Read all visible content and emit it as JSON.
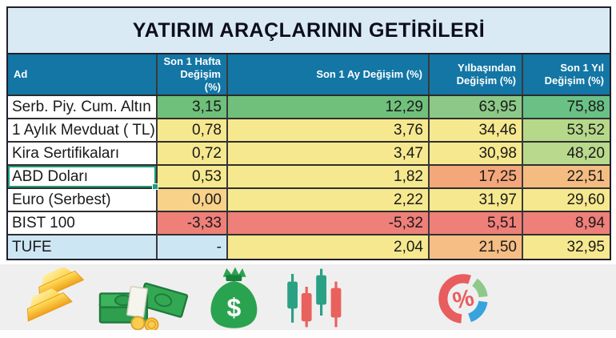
{
  "title": "YATIRIM ARAÇLARININ GETİRİLERİ",
  "chart_data": {
    "type": "table",
    "title": "YATIRIM ARAÇLARININ GETİRİLERİ",
    "columns": [
      "Ad",
      "Son 1 Hafta Değişim (%)",
      "Son 1 Ay Değişim (%)",
      "Yılbaşından Değişim (%)",
      "Son 1 Yıl Değişim (%)"
    ],
    "rows": [
      {
        "cells": [
          "Serb. Piy. Cum. Altın",
          "3,15",
          "12,29",
          "63,95",
          "75,88"
        ],
        "colors": [
          "#ffffff",
          "#6fc07a",
          "#70c07b",
          "#8cc988",
          "#6ac186"
        ]
      },
      {
        "cells": [
          "1 Aylık Mevduat ( TL)",
          "0,78",
          "3,76",
          "34,46",
          "53,52"
        ],
        "colors": [
          "#ffffff",
          "#f6e88e",
          "#f6e88e",
          "#f6e88e",
          "#b6d88b"
        ]
      },
      {
        "cells": [
          "Kira Sertifikaları",
          "0,72",
          "3,47",
          "30,98",
          "48,20"
        ],
        "colors": [
          "#ffffff",
          "#f6e88e",
          "#f6e88e",
          "#f6e88e",
          "#b9d98c"
        ]
      },
      {
        "cells": [
          "ABD Doları",
          "0,53",
          "1,82",
          "17,25",
          "22,51"
        ],
        "colors": [
          "#ffffff",
          "#f6e88e",
          "#f6e88e",
          "#f3a77b",
          "#f5bc82"
        ]
      },
      {
        "cells": [
          "Euro (Serbest)",
          "0,00",
          "2,22",
          "31,97",
          "29,60"
        ],
        "colors": [
          "#ffffff",
          "#f8d289",
          "#f6e88e",
          "#f6e88e",
          "#f6e88e"
        ]
      },
      {
        "cells": [
          "BIST 100",
          "-3,33",
          "-5,32",
          "5,51",
          "8,94"
        ],
        "colors": [
          "#ffffff",
          "#ef7f79",
          "#ef7f79",
          "#ef7f79",
          "#ef7f79"
        ]
      },
      {
        "cells": [
          "TUFE",
          "-",
          "2,04",
          "21,50",
          "32,95"
        ],
        "colors": [
          "#cde6f4",
          "#cde6f4",
          "#f6e88e",
          "#f6bd85",
          "#f6e88e"
        ]
      }
    ]
  },
  "selection": {
    "row": 3,
    "col": 0
  },
  "icons": [
    "gold-bars-icon",
    "cash-stack-icon",
    "money-bag-icon",
    "candlestick-chart-icon",
    "percent-donut-icon"
  ],
  "colors": {
    "title_bg": "#d9eaf5",
    "header_bg": "#1376a4",
    "header_text": "#ffffff",
    "good_green": "#6fc07a",
    "light_green": "#b6d88b",
    "neutral_yellow": "#f6e88e",
    "warn_orange": "#f3a77b",
    "bad_red": "#ef7f79",
    "info_blue": "#cde6f4",
    "selection_teal": "#1f9d77",
    "strip_gray": "#f0eff0"
  }
}
